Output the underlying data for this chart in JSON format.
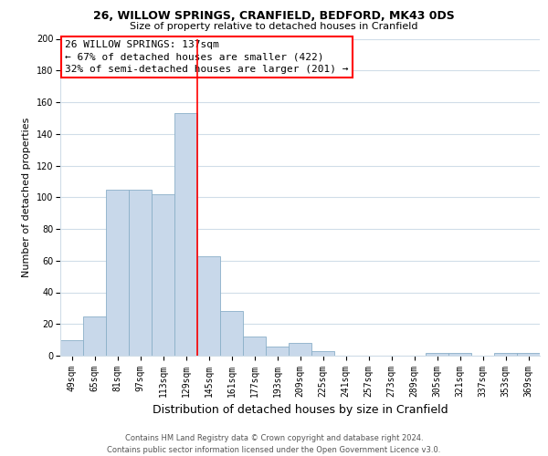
{
  "title1": "26, WILLOW SPRINGS, CRANFIELD, BEDFORD, MK43 0DS",
  "title2": "Size of property relative to detached houses in Cranfield",
  "xlabel": "Distribution of detached houses by size in Cranfield",
  "ylabel": "Number of detached properties",
  "bar_color": "#c8d8ea",
  "bar_edge_color": "#8aafc8",
  "categories": [
    "49sqm",
    "65sqm",
    "81sqm",
    "97sqm",
    "113sqm",
    "129sqm",
    "145sqm",
    "161sqm",
    "177sqm",
    "193sqm",
    "209sqm",
    "225sqm",
    "241sqm",
    "257sqm",
    "273sqm",
    "289sqm",
    "305sqm",
    "321sqm",
    "337sqm",
    "353sqm",
    "369sqm"
  ],
  "values": [
    10,
    25,
    105,
    105,
    102,
    153,
    63,
    28,
    12,
    6,
    8,
    3,
    0,
    0,
    0,
    0,
    2,
    2,
    0,
    2,
    2
  ],
  "ylim": [
    0,
    200
  ],
  "yticks": [
    0,
    20,
    40,
    60,
    80,
    100,
    120,
    140,
    160,
    180,
    200
  ],
  "property_line_x": 6.0,
  "property_line_label": "26 WILLOW SPRINGS: 137sqm",
  "annotation_line1": "← 67% of detached houses are smaller (422)",
  "annotation_line2": "32% of semi-detached houses are larger (201) →",
  "annotation_box_color": "white",
  "annotation_box_edge": "red",
  "vline_color": "red",
  "footer1": "Contains HM Land Registry data © Crown copyright and database right 2024.",
  "footer2": "Contains public sector information licensed under the Open Government Licence v3.0.",
  "grid_color": "#d0dde8",
  "title1_fontsize": 9,
  "title2_fontsize": 8,
  "ylabel_fontsize": 8,
  "xlabel_fontsize": 9,
  "tick_fontsize": 7,
  "footer_fontsize": 6,
  "annot_fontsize": 8
}
